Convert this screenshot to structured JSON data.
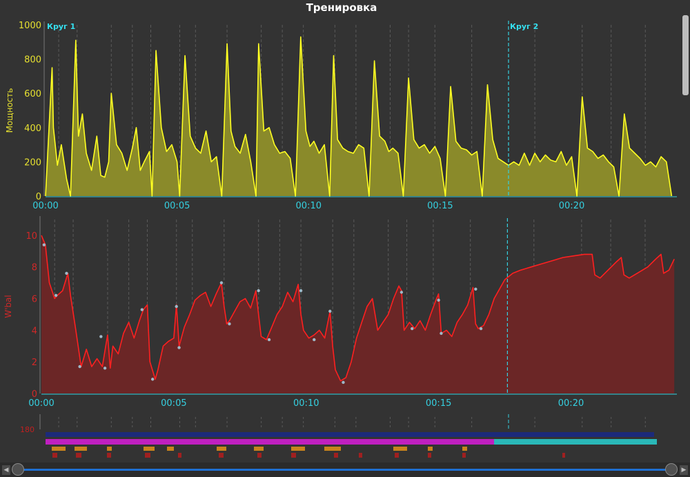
{
  "window": {
    "title": "Тренировка"
  },
  "chart_data": [
    {
      "type": "area",
      "ylabel": "Мощность",
      "ylim": [
        0,
        1000
      ],
      "yticks": [
        "0",
        "200",
        "400",
        "600",
        "800",
        "1000"
      ],
      "xticks": [
        "00:00",
        "00:05",
        "00:10",
        "00:15",
        "00:20"
      ],
      "xlim_minutes": [
        0,
        24
      ],
      "laps": [
        {
          "label": "Круг 1",
          "t_min": 0
        },
        {
          "label": "Круг 2",
          "t_min": 17.6
        }
      ],
      "color": "#ffff22",
      "fill": "#8a8a2a",
      "series": [
        {
          "t_min": [
            0,
            0.25,
            0.3,
            0.45,
            0.6,
            0.8,
            0.95,
            1.15,
            1.25,
            1.4,
            1.55,
            1.75,
            1.95,
            2.1,
            2.25,
            2.4,
            2.5,
            2.7,
            2.9,
            3.1,
            3.3,
            3.45,
            3.6,
            3.75,
            3.95,
            4.05,
            4.2,
            4.4,
            4.6,
            4.8,
            5.0,
            5.1,
            5.3,
            5.5,
            5.7,
            5.9,
            6.1,
            6.3,
            6.5,
            6.7,
            6.9,
            7.05,
            7.2,
            7.4,
            7.6,
            7.8,
            8.0,
            8.1,
            8.3,
            8.5,
            8.7,
            8.9,
            9.1,
            9.3,
            9.5,
            9.7,
            9.9,
            10.05,
            10.2,
            10.4,
            10.6,
            10.8,
            10.95,
            11.1,
            11.3,
            11.5,
            11.7,
            11.9,
            12.1,
            12.3,
            12.5,
            12.7,
            12.9,
            13.05,
            13.2,
            13.4,
            13.6,
            13.8,
            14.0,
            14.2,
            14.4,
            14.6,
            14.8,
            15.0,
            15.2,
            15.4,
            15.6,
            15.8,
            16.0,
            16.2,
            16.4,
            16.6,
            16.8,
            17.0,
            17.2,
            17.4,
            17.6,
            17.8,
            18.0,
            18.2,
            18.4,
            18.6,
            18.8,
            19.0,
            19.2,
            19.4,
            19.6,
            19.8,
            20.0,
            20.2,
            20.4,
            20.6,
            20.8,
            21.0,
            21.2,
            21.4,
            21.6,
            21.8,
            22.0,
            22.2,
            22.4,
            22.6,
            22.8,
            23.0,
            23.2,
            23.4,
            23.6,
            23.8
          ],
          "power": [
            0,
            750,
            400,
            180,
            300,
            100,
            0,
            910,
            350,
            480,
            250,
            150,
            350,
            120,
            110,
            200,
            600,
            300,
            250,
            150,
            280,
            400,
            150,
            200,
            260,
            0,
            850,
            400,
            260,
            300,
            200,
            0,
            820,
            350,
            280,
            250,
            380,
            200,
            230,
            0,
            890,
            380,
            290,
            250,
            360,
            200,
            0,
            890,
            380,
            400,
            300,
            250,
            260,
            220,
            0,
            930,
            380,
            290,
            320,
            250,
            300,
            0,
            820,
            330,
            280,
            260,
            250,
            300,
            280,
            0,
            790,
            350,
            320,
            260,
            280,
            250,
            0,
            690,
            330,
            280,
            300,
            250,
            290,
            220,
            0,
            640,
            320,
            280,
            270,
            240,
            260,
            0,
            650,
            330,
            220,
            200,
            180,
            200,
            180,
            250,
            180,
            250,
            200,
            240,
            210,
            200,
            260,
            180,
            230,
            0,
            580,
            280,
            260,
            220,
            240,
            200,
            170,
            0,
            480,
            280,
            250,
            220,
            180,
            200,
            170,
            230,
            200,
            0
          ]
        }
      ]
    },
    {
      "type": "area",
      "ylabel": "W'bal",
      "ylim": [
        0,
        11
      ],
      "yticks": [
        "0",
        "2",
        "4",
        "6",
        "8",
        "10"
      ],
      "xticks": [
        "00:00",
        "00:05",
        "00:10",
        "00:15",
        "00:20"
      ],
      "xlim_minutes": [
        0,
        24
      ],
      "lap_line_t_min": 17.6,
      "color": "#ff2020",
      "fill": "#6b2626",
      "series": [
        {
          "t_min": [
            0,
            0.15,
            0.3,
            0.5,
            0.6,
            0.8,
            1.0,
            1.1,
            1.3,
            1.5,
            1.7,
            1.9,
            2.1,
            2.3,
            2.5,
            2.6,
            2.7,
            2.9,
            3.1,
            3.3,
            3.5,
            3.7,
            3.85,
            4.0,
            4.1,
            4.3,
            4.4,
            4.6,
            4.8,
            5.0,
            5.1,
            5.2,
            5.4,
            5.6,
            5.8,
            6.0,
            6.2,
            6.4,
            6.6,
            6.8,
            6.9,
            7.0,
            7.1,
            7.3,
            7.5,
            7.7,
            7.9,
            8.1,
            8.2,
            8.3,
            8.5,
            8.7,
            8.9,
            9.1,
            9.3,
            9.5,
            9.7,
            9.8,
            9.9,
            10.1,
            10.3,
            10.5,
            10.7,
            10.9,
            11.0,
            11.1,
            11.3,
            11.5,
            11.7,
            11.9,
            12.1,
            12.3,
            12.5,
            12.7,
            12.9,
            13.1,
            13.3,
            13.5,
            13.6,
            13.7,
            13.9,
            14.1,
            14.3,
            14.5,
            14.7,
            14.9,
            15.0,
            15.1,
            15.3,
            15.5,
            15.7,
            15.9,
            16.1,
            16.3,
            16.4,
            16.5,
            16.7,
            16.9,
            17.1,
            17.3,
            17.5,
            17.8,
            18.1,
            18.5,
            18.9,
            19.3,
            19.7,
            20.1,
            20.5,
            20.8,
            20.9,
            21.1,
            21.4,
            21.7,
            21.9,
            22.0,
            22.2,
            22.5,
            22.9,
            23.2,
            23.4,
            23.5,
            23.7,
            23.9
          ],
          "wbal": [
            10.0,
            9.4,
            7.0,
            6.0,
            6.2,
            6.5,
            7.6,
            6.2,
            4.0,
            1.7,
            2.8,
            1.7,
            2.2,
            1.7,
            3.7,
            1.6,
            3.0,
            2.5,
            3.8,
            4.5,
            3.5,
            4.6,
            5.3,
            5.6,
            2.0,
            0.9,
            1.5,
            3.0,
            3.3,
            3.5,
            5.6,
            3.0,
            4.2,
            5.0,
            5.9,
            6.2,
            6.4,
            5.5,
            6.3,
            7.0,
            5.5,
            4.4,
            4.6,
            5.2,
            5.8,
            6.0,
            5.4,
            6.5,
            5.0,
            3.6,
            3.4,
            4.2,
            5.0,
            5.5,
            6.4,
            5.8,
            6.9,
            5.0,
            4.0,
            3.5,
            3.7,
            4.0,
            3.5,
            5.2,
            3.0,
            1.5,
            0.8,
            1.0,
            2.0,
            3.5,
            4.5,
            5.5,
            6.0,
            4.0,
            4.5,
            5.0,
            6.0,
            6.8,
            6.5,
            4.0,
            4.5,
            4.1,
            4.6,
            4.0,
            5.0,
            5.9,
            6.3,
            3.8,
            4.0,
            3.6,
            4.5,
            5.0,
            5.6,
            6.7,
            4.4,
            4.1,
            4.3,
            5.0,
            6.0,
            6.6,
            7.2,
            7.6,
            7.8,
            8.0,
            8.2,
            8.4,
            8.6,
            8.7,
            8.8,
            8.8,
            7.5,
            7.3,
            7.8,
            8.3,
            8.6,
            7.5,
            7.3,
            7.6,
            8.0,
            8.5,
            8.8,
            7.6,
            7.8,
            8.5
          ]
        }
      ],
      "markers": [
        {
          "t_min": 0.1,
          "v": 9.4
        },
        {
          "t_min": 0.55,
          "v": 6.2
        },
        {
          "t_min": 0.95,
          "v": 7.6
        },
        {
          "t_min": 1.45,
          "v": 1.7
        },
        {
          "t_min": 2.25,
          "v": 3.6
        },
        {
          "t_min": 2.4,
          "v": 1.6
        },
        {
          "t_min": 3.8,
          "v": 5.3
        },
        {
          "t_min": 4.2,
          "v": 0.9
        },
        {
          "t_min": 5.1,
          "v": 5.5
        },
        {
          "t_min": 5.2,
          "v": 2.9
        },
        {
          "t_min": 6.8,
          "v": 7.0
        },
        {
          "t_min": 7.1,
          "v": 4.4
        },
        {
          "t_min": 8.2,
          "v": 6.5
        },
        {
          "t_min": 8.6,
          "v": 3.4
        },
        {
          "t_min": 9.8,
          "v": 6.5
        },
        {
          "t_min": 10.3,
          "v": 3.4
        },
        {
          "t_min": 10.9,
          "v": 5.2
        },
        {
          "t_min": 11.4,
          "v": 0.7
        },
        {
          "t_min": 13.6,
          "v": 6.4
        },
        {
          "t_min": 14.0,
          "v": 4.1
        },
        {
          "t_min": 15.0,
          "v": 5.9
        },
        {
          "t_min": 15.1,
          "v": 3.8
        },
        {
          "t_min": 16.4,
          "v": 6.6
        },
        {
          "t_min": 16.6,
          "v": 4.1
        }
      ]
    }
  ],
  "bottom_panel": {
    "tick_partial": "180"
  }
}
